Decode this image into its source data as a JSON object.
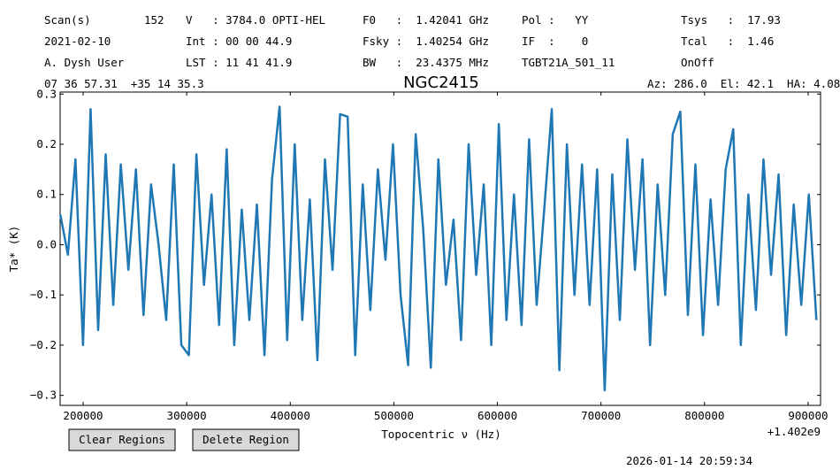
{
  "chart_data": {
    "type": "line",
    "header_rows": [
      [
        "Scan(s)",
        "152",
        "V   : 3784.0 OPTI-HEL",
        "F0   :  1.42041 GHz",
        "Pol :   YY",
        "Tsys   :  17.93"
      ],
      [
        "2021-02-10",
        "Int : 00 00 44.9",
        "Fsky :  1.40254 GHz",
        "IF  :    0",
        "Tcal   :  1.46"
      ],
      [
        "A. Dysh User",
        "LST : 11 41 41.9",
        "BW   :  23.4375 MHz",
        "TGBT21A_501_11",
        "OnOff"
      ]
    ],
    "coordinates": "07 36 57.31  +35 14 35.3",
    "pointing": "Az: 286.0  El: 42.1  HA: 4.08",
    "title": "NGC2415",
    "x_label": "Topocentric ν (Hz)",
    "x_offset_label": "+1.402e9",
    "y_label": "Ta* (K)",
    "color": "#1f77b4",
    "x": [
      178000,
      185300,
      192600,
      199900,
      207200,
      214500,
      221800,
      229100,
      236400,
      243700,
      251000,
      258300,
      265600,
      272900,
      280200,
      287500,
      294800,
      302100,
      309400,
      316700,
      324000,
      331300,
      338600,
      345900,
      353200,
      360500,
      367800,
      375100,
      382400,
      389700,
      397000,
      404300,
      411600,
      418900,
      426200,
      433500,
      440800,
      448100,
      455400,
      462700,
      470000,
      477300,
      484600,
      491900,
      499200,
      506500,
      513800,
      521100,
      528400,
      535700,
      543000,
      550300,
      557600,
      564900,
      572200,
      579500,
      586800,
      594100,
      601400,
      608700,
      616000,
      623300,
      630600,
      637900,
      645200,
      652500,
      659800,
      667100,
      674400,
      681700,
      689000,
      696300,
      703600,
      710900,
      718200,
      725500,
      732800,
      740100,
      747400,
      754700,
      762000,
      769300,
      776600,
      783900,
      791200,
      798500,
      805800,
      813100,
      820400,
      827700,
      835000,
      842300,
      849600,
      856900,
      864200,
      871500,
      878800,
      886100,
      893400,
      900700,
      908000
    ],
    "values": [
      0.06,
      -0.02,
      0.17,
      -0.2,
      0.27,
      -0.17,
      0.18,
      -0.12,
      0.16,
      -0.05,
      0.15,
      -0.14,
      0.12,
      0.0,
      -0.15,
      0.16,
      -0.2,
      -0.22,
      0.18,
      -0.08,
      0.1,
      -0.16,
      0.19,
      -0.2,
      0.07,
      -0.15,
      0.08,
      -0.22,
      0.13,
      0.275,
      -0.19,
      0.2,
      -0.15,
      0.09,
      -0.23,
      0.17,
      -0.05,
      0.26,
      0.255,
      -0.22,
      0.12,
      -0.13,
      0.15,
      -0.03,
      0.2,
      -0.1,
      -0.24,
      0.22,
      0.03,
      -0.245,
      0.17,
      -0.08,
      0.05,
      -0.19,
      0.2,
      -0.06,
      0.12,
      -0.2,
      0.24,
      -0.15,
      0.1,
      -0.16,
      0.21,
      -0.12,
      0.07,
      0.27,
      -0.25,
      0.2,
      -0.1,
      0.16,
      -0.12,
      0.15,
      -0.29,
      0.14,
      -0.15,
      0.21,
      -0.05,
      0.17,
      -0.2,
      0.12,
      -0.1,
      0.22,
      0.265,
      -0.14,
      0.16,
      -0.18,
      0.09,
      -0.12,
      0.15,
      0.23,
      -0.2,
      0.1,
      -0.13,
      0.17,
      -0.06,
      0.14,
      -0.18,
      0.08,
      -0.12,
      0.1,
      -0.15
    ],
    "xlim": [
      177800,
      912000
    ],
    "ylim": [
      -0.32,
      0.304
    ],
    "xticks": [
      200000,
      300000,
      400000,
      500000,
      600000,
      700000,
      800000,
      900000
    ],
    "yticks": [
      0.3,
      0.2,
      0.1,
      {
        "value": 0,
        "label": "0.0"
      },
      {
        "value": -0.1,
        "label": "−0.1"
      },
      {
        "value": -0.2,
        "label": "−0.2"
      },
      {
        "value": -0.3,
        "label": "−0.3"
      }
    ],
    "buttons": [
      "Clear Regions",
      "Delete Region"
    ],
    "timestamp": "2026-01-14 20:59:34"
  }
}
